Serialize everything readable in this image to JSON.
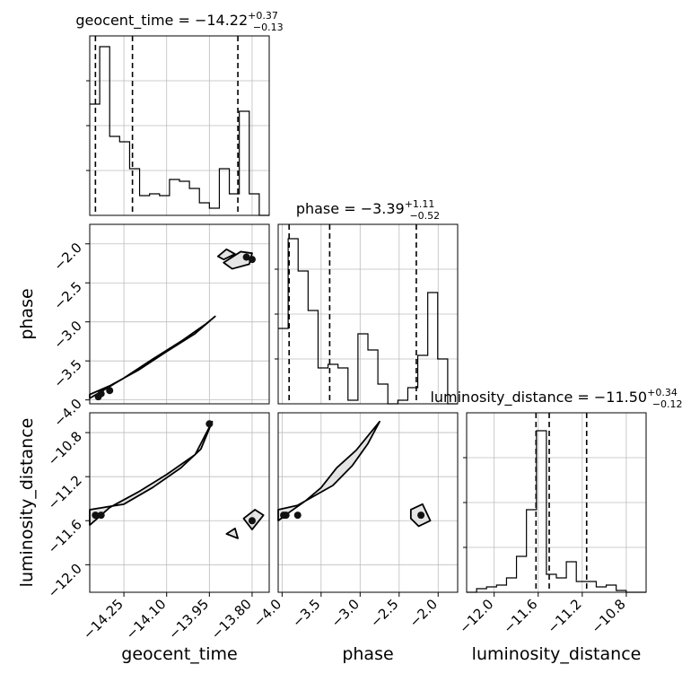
{
  "chart_data": {
    "type": "corner",
    "parameters": [
      {
        "name": "geocent_time",
        "title": {
          "prefix": "geocent_time = ",
          "median": "−14.22",
          "plus": "+0.37",
          "minus": "−0.13"
        },
        "range": [
          -14.37,
          -13.74
        ],
        "ticks": [
          -14.25,
          -14.1,
          -13.95,
          -13.8
        ],
        "tick_labels": [
          "−14.25",
          "−14.10",
          "−13.95",
          "−13.80"
        ],
        "quantile_lines": [
          -14.35,
          -14.22,
          -13.85
        ],
        "hist_edges_range": [
          -14.37,
          -13.74
        ],
        "hist_counts": [
          0.62,
          0.94,
          0.44,
          0.41,
          0.26,
          0.11,
          0.12,
          0.11,
          0.2,
          0.19,
          0.15,
          0.07,
          0.04,
          0.26,
          0.12,
          0.58,
          0.12,
          0.0
        ],
        "hist_ylim": [
          0,
          1.0
        ]
      },
      {
        "name": "phase",
        "title": {
          "prefix": "phase = ",
          "median": "−3.39",
          "plus": "+1.11",
          "minus": "−0.52"
        },
        "range": [
          -4.05,
          -1.75
        ],
        "ticks": [
          -4.0,
          -3.5,
          -3.0,
          -2.5,
          -2.0
        ],
        "tick_labels": [
          "−4.0",
          "−3.5",
          "−3.0",
          "−2.5",
          "−2.0"
        ],
        "y_tick_labels": [
          "−2.0",
          "−2.5",
          "−3.0",
          "−3.5",
          "−4.0"
        ],
        "quantile_lines": [
          -3.91,
          -3.39,
          -2.28
        ],
        "hist_edges_range": [
          -4.05,
          -1.75
        ],
        "hist_counts": [
          0.42,
          0.92,
          0.74,
          0.52,
          0.2,
          0.22,
          0.2,
          0.02,
          0.39,
          0.3,
          0.11,
          0.0,
          0.02,
          0.09,
          0.27,
          0.62,
          0.25,
          0.0
        ],
        "hist_ylim": [
          0,
          1.0
        ]
      },
      {
        "name": "luminosity_distance",
        "title": {
          "prefix": "luminosity_distance = ",
          "median": "−11.50",
          "plus": "+0.34",
          "minus": "−0.12"
        },
        "range": [
          -12.25,
          -10.62
        ],
        "ticks": [
          -12.0,
          -11.6,
          -11.2,
          -10.8
        ],
        "tick_labels": [
          "−12.0",
          "−11.6",
          "−11.2",
          "−10.8"
        ],
        "y_tick_labels": [
          "−10.8",
          "−11.2",
          "−11.6",
          "−12.0"
        ],
        "quantile_lines": [
          -11.62,
          -11.5,
          -11.16
        ],
        "hist_edges_range": [
          -12.25,
          -10.62
        ],
        "hist_counts": [
          0.0,
          0.02,
          0.03,
          0.04,
          0.08,
          0.2,
          0.46,
          0.9,
          0.1,
          0.08,
          0.17,
          0.06,
          0.06,
          0.03,
          0.04,
          0.01,
          0.0,
          0.0
        ],
        "hist_ylim": [
          0,
          1.0
        ]
      }
    ],
    "contours": [
      {
        "x_param": "geocent_time",
        "y_param": "phase",
        "paths": [
          [
            [
              -14.37,
              -3.93
            ],
            [
              -14.3,
              -3.82
            ],
            [
              -14.2,
              -3.62
            ],
            [
              -14.1,
              -3.38
            ],
            [
              -14.0,
              -3.15
            ],
            [
              -13.93,
              -2.93
            ],
            [
              -13.96,
              -3.02
            ],
            [
              -14.05,
              -3.25
            ],
            [
              -14.15,
              -3.48
            ],
            [
              -14.25,
              -3.72
            ],
            [
              -14.37,
              -3.98
            ]
          ],
          [
            [
              -13.9,
              -2.24
            ],
            [
              -13.84,
              -2.1
            ],
            [
              -13.8,
              -2.12
            ],
            [
              -13.81,
              -2.26
            ],
            [
              -13.87,
              -2.32
            ]
          ],
          [
            [
              -13.92,
              -2.16
            ],
            [
              -13.89,
              -2.07
            ],
            [
              -13.86,
              -2.13
            ],
            [
              -13.9,
              -2.2
            ]
          ]
        ],
        "dense_points": [
          [
            -14.34,
            -3.96
          ],
          [
            -14.33,
            -3.92
          ],
          [
            -14.3,
            -3.88
          ],
          [
            -13.8,
            -2.2
          ],
          [
            -13.82,
            -2.17
          ]
        ]
      },
      {
        "x_param": "geocent_time",
        "y_param": "luminosity_distance",
        "paths": [
          [
            [
              -14.37,
              -11.64
            ],
            [
              -14.3,
              -11.48
            ],
            [
              -14.2,
              -11.34
            ],
            [
              -14.1,
              -11.18
            ],
            [
              -14.0,
              -11.0
            ],
            [
              -13.94,
              -10.7
            ],
            [
              -13.98,
              -10.95
            ],
            [
              -14.05,
              -11.12
            ],
            [
              -14.15,
              -11.3
            ],
            [
              -14.25,
              -11.45
            ],
            [
              -14.37,
              -11.5
            ]
          ],
          [
            [
              -13.83,
              -11.58
            ],
            [
              -13.79,
              -11.5
            ],
            [
              -13.76,
              -11.55
            ],
            [
              -13.8,
              -11.68
            ]
          ],
          [
            [
              -13.89,
              -11.72
            ],
            [
              -13.86,
              -11.67
            ],
            [
              -13.85,
              -11.76
            ]
          ]
        ],
        "dense_points": [
          [
            -14.35,
            -11.55
          ],
          [
            -14.33,
            -11.55
          ],
          [
            -13.8,
            -11.6
          ],
          [
            -13.95,
            -10.72
          ]
        ]
      },
      {
        "x_param": "phase",
        "y_param": "luminosity_distance",
        "paths": [
          [
            [
              -4.05,
              -11.6
            ],
            [
              -3.9,
              -11.52
            ],
            [
              -3.7,
              -11.42
            ],
            [
              -3.5,
              -11.3
            ],
            [
              -3.3,
              -11.12
            ],
            [
              -3.05,
              -10.96
            ],
            [
              -2.75,
              -10.7
            ],
            [
              -2.9,
              -10.9
            ],
            [
              -3.1,
              -11.1
            ],
            [
              -3.35,
              -11.28
            ],
            [
              -3.6,
              -11.38
            ],
            [
              -3.8,
              -11.46
            ],
            [
              -4.05,
              -11.5
            ]
          ],
          [
            [
              -2.35,
              -11.5
            ],
            [
              -2.2,
              -11.45
            ],
            [
              -2.1,
              -11.6
            ],
            [
              -2.25,
              -11.65
            ],
            [
              -2.35,
              -11.58
            ]
          ]
        ],
        "dense_points": [
          [
            -3.98,
            -11.55
          ],
          [
            -3.95,
            -11.55
          ],
          [
            -2.22,
            -11.55
          ],
          [
            -3.8,
            -11.55
          ]
        ]
      }
    ],
    "xlabels": [
      "geocent_time",
      "phase",
      "luminosity_distance"
    ],
    "ylabels": [
      "phase",
      "luminosity_distance"
    ],
    "grid": true
  }
}
